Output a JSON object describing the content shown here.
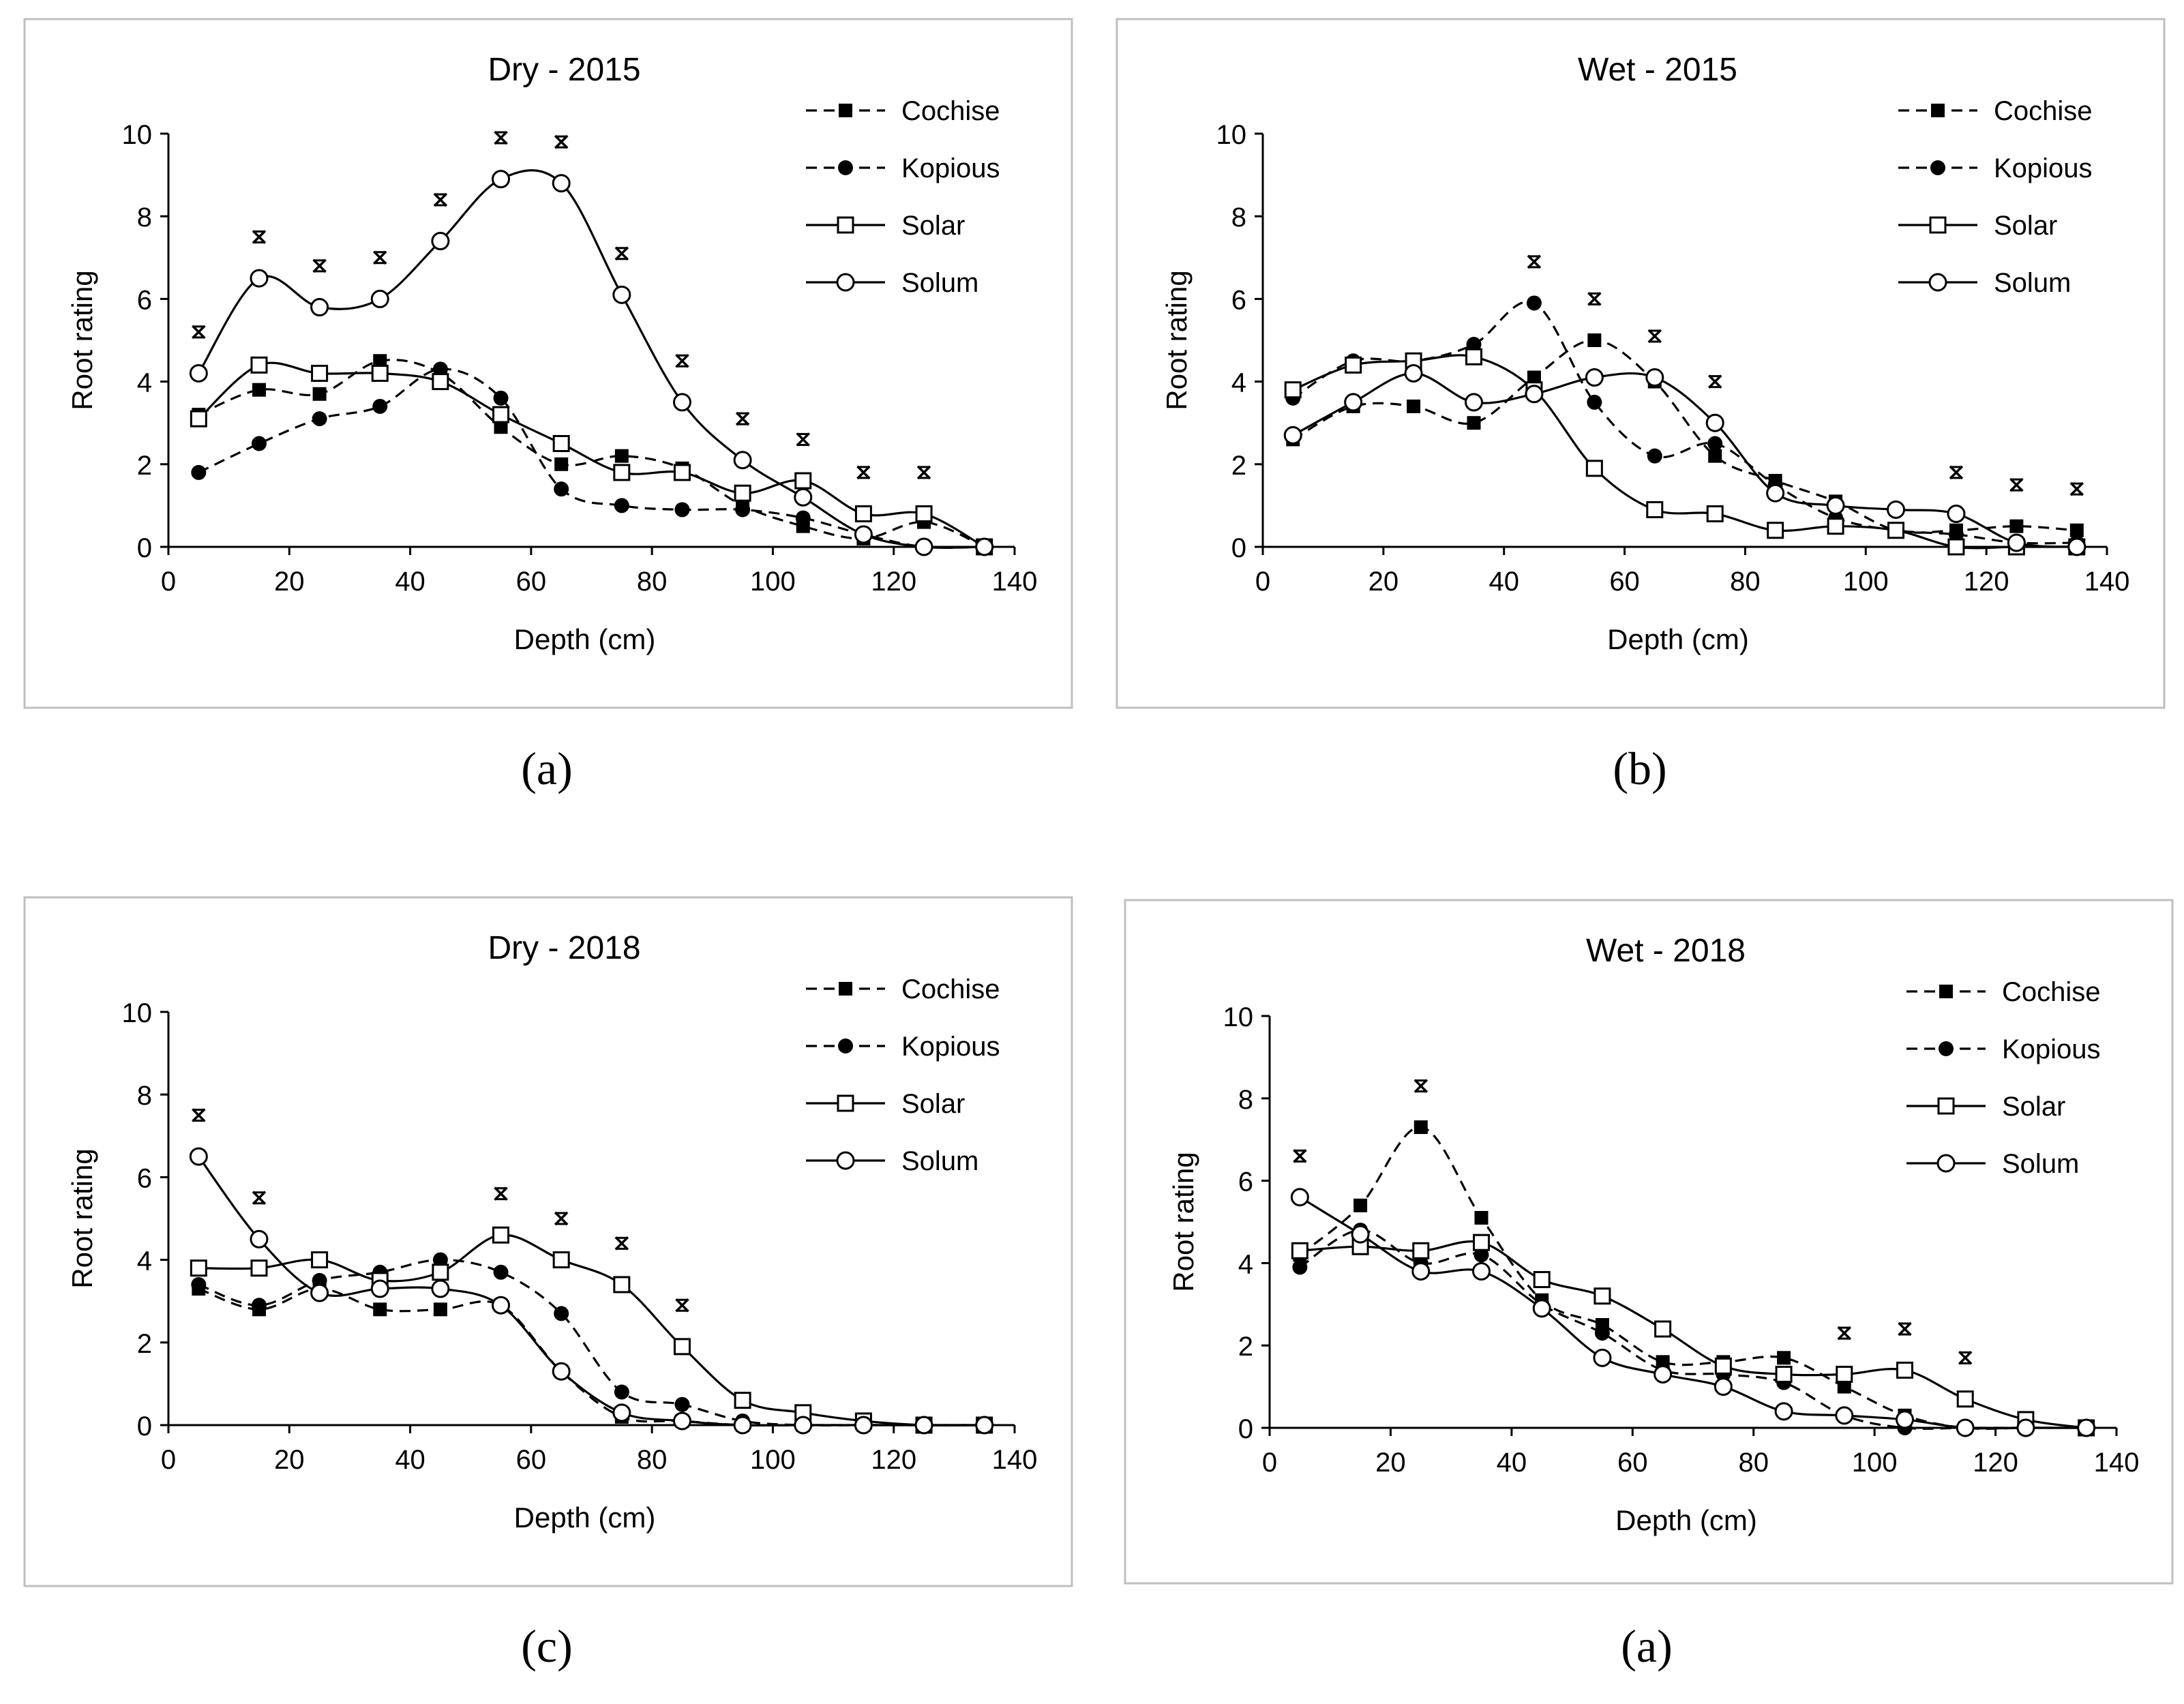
{
  "chart_data": [
    {
      "type": "line",
      "title": "Dry - 2015",
      "caption": "(a)",
      "xlabel": "Depth (cm)",
      "ylabel": "Root rating",
      "xlim": [
        0,
        140
      ],
      "ylim": [
        0,
        10
      ],
      "xticks": [
        0,
        20,
        40,
        60,
        80,
        100,
        120,
        140
      ],
      "yticks": [
        0,
        2,
        4,
        6,
        8,
        10
      ],
      "grid": false,
      "legend_position": "top-right",
      "x": [
        5,
        15,
        25,
        35,
        45,
        55,
        65,
        75,
        85,
        95,
        105,
        115,
        125,
        135
      ],
      "series": [
        {
          "name": "Cochise",
          "values": [
            3.2,
            3.8,
            3.7,
            4.5,
            4.2,
            2.9,
            2.0,
            2.2,
            1.9,
            1.0,
            0.5,
            0.2,
            0.6,
            0.0
          ]
        },
        {
          "name": "Kopious",
          "values": [
            1.8,
            2.5,
            3.1,
            3.4,
            4.3,
            3.6,
            1.4,
            1.0,
            0.9,
            0.9,
            0.7,
            0.3,
            0.0,
            0.0
          ]
        },
        {
          "name": "Solar",
          "values": [
            3.1,
            4.4,
            4.2,
            4.2,
            4.0,
            3.2,
            2.5,
            1.8,
            1.8,
            1.3,
            1.6,
            0.8,
            0.8,
            0.0
          ]
        },
        {
          "name": "Solum",
          "values": [
            4.2,
            6.5,
            5.8,
            6.0,
            7.4,
            8.9,
            8.8,
            6.1,
            3.5,
            2.1,
            1.2,
            0.3,
            0.0,
            0.0
          ]
        }
      ],
      "significance_marks": [
        {
          "x": 5,
          "y": 5.2,
          "label": "*"
        },
        {
          "x": 15,
          "y": 7.5,
          "label": "*"
        },
        {
          "x": 25,
          "y": 6.8,
          "label": "*"
        },
        {
          "x": 35,
          "y": 7.0,
          "label": "*"
        },
        {
          "x": 45,
          "y": 8.4,
          "label": "*"
        },
        {
          "x": 55,
          "y": 9.9,
          "label": "*"
        },
        {
          "x": 65,
          "y": 9.8,
          "label": "*"
        },
        {
          "x": 75,
          "y": 7.1,
          "label": "*"
        },
        {
          "x": 85,
          "y": 4.5,
          "label": "*"
        },
        {
          "x": 95,
          "y": 3.1,
          "label": "*"
        },
        {
          "x": 105,
          "y": 2.6,
          "label": "*"
        },
        {
          "x": 115,
          "y": 1.8,
          "label": "*"
        },
        {
          "x": 125,
          "y": 1.8,
          "label": "*"
        }
      ]
    },
    {
      "type": "line",
      "title": "Wet - 2015",
      "caption": "(b)",
      "xlabel": "Depth (cm)",
      "ylabel": "Root rating",
      "xlim": [
        0,
        140
      ],
      "ylim": [
        0,
        10
      ],
      "xticks": [
        0,
        20,
        40,
        60,
        80,
        100,
        120,
        140
      ],
      "yticks": [
        0,
        2,
        4,
        6,
        8,
        10
      ],
      "grid": false,
      "legend_position": "top-right",
      "x": [
        5,
        15,
        25,
        35,
        45,
        55,
        65,
        75,
        85,
        95,
        105,
        115,
        125,
        135
      ],
      "series": [
        {
          "name": "Cochise",
          "values": [
            2.6,
            3.4,
            3.4,
            3.0,
            4.1,
            5.0,
            4.0,
            2.2,
            1.6,
            1.1,
            0.4,
            0.4,
            0.5,
            0.4
          ]
        },
        {
          "name": "Kopious",
          "values": [
            3.6,
            4.5,
            4.5,
            4.9,
            5.9,
            3.5,
            2.2,
            2.5,
            1.5,
            0.7,
            0.4,
            0.3,
            0.1,
            0.1
          ]
        },
        {
          "name": "Solar",
          "values": [
            3.8,
            4.4,
            4.5,
            4.6,
            3.8,
            1.9,
            0.9,
            0.8,
            0.4,
            0.5,
            0.4,
            0.0,
            0.0,
            0.0
          ]
        },
        {
          "name": "Solum",
          "values": [
            2.7,
            3.5,
            4.2,
            3.5,
            3.7,
            4.1,
            4.1,
            3.0,
            1.3,
            1.0,
            0.9,
            0.8,
            0.1,
            0.0
          ]
        }
      ],
      "significance_marks": [
        {
          "x": 45,
          "y": 6.9,
          "label": "*"
        },
        {
          "x": 55,
          "y": 6.0,
          "label": "*"
        },
        {
          "x": 65,
          "y": 5.1,
          "label": "*"
        },
        {
          "x": 75,
          "y": 4.0,
          "label": "*"
        },
        {
          "x": 115,
          "y": 1.8,
          "label": "*"
        },
        {
          "x": 125,
          "y": 1.5,
          "label": "*"
        },
        {
          "x": 135,
          "y": 1.4,
          "label": "*"
        }
      ]
    },
    {
      "type": "line",
      "title": "Dry - 2018",
      "caption": "(c)",
      "xlabel": "Depth (cm)",
      "ylabel": "Root rating",
      "xlim": [
        0,
        140
      ],
      "ylim": [
        0,
        10
      ],
      "xticks": [
        0,
        20,
        40,
        60,
        80,
        100,
        120,
        140
      ],
      "yticks": [
        0,
        2,
        4,
        6,
        8,
        10
      ],
      "grid": false,
      "legend_position": "top-right",
      "x": [
        5,
        15,
        25,
        35,
        45,
        55,
        65,
        75,
        85,
        95,
        105,
        115,
        125,
        135
      ],
      "series": [
        {
          "name": "Cochise",
          "values": [
            3.3,
            2.8,
            3.3,
            2.8,
            2.8,
            2.9,
            1.3,
            0.2,
            0.1,
            0.0,
            0.0,
            0.0,
            0.0,
            0.0
          ]
        },
        {
          "name": "Kopious",
          "values": [
            3.4,
            2.9,
            3.5,
            3.7,
            4.0,
            3.7,
            2.7,
            0.8,
            0.5,
            0.1,
            0.0,
            0.0,
            0.0,
            0.0
          ]
        },
        {
          "name": "Solar",
          "values": [
            3.8,
            3.8,
            4.0,
            3.5,
            3.7,
            4.6,
            4.0,
            3.4,
            1.9,
            0.6,
            0.3,
            0.1,
            0.0,
            0.0
          ]
        },
        {
          "name": "Solum",
          "values": [
            6.5,
            4.5,
            3.2,
            3.3,
            3.3,
            2.9,
            1.3,
            0.3,
            0.1,
            0.0,
            0.0,
            0.0,
            0.0,
            0.0
          ]
        }
      ],
      "significance_marks": [
        {
          "x": 5,
          "y": 7.5,
          "label": "*"
        },
        {
          "x": 15,
          "y": 5.5,
          "label": "*"
        },
        {
          "x": 55,
          "y": 5.6,
          "label": "*"
        },
        {
          "x": 65,
          "y": 5.0,
          "label": "*"
        },
        {
          "x": 75,
          "y": 4.4,
          "label": "*"
        },
        {
          "x": 85,
          "y": 2.9,
          "label": "*"
        }
      ]
    },
    {
      "type": "line",
      "title": "Wet - 2018",
      "caption": "(a)",
      "xlabel": "Depth (cm)",
      "ylabel": "Root rating",
      "xlim": [
        0,
        140
      ],
      "ylim": [
        0,
        10
      ],
      "xticks": [
        0,
        20,
        40,
        60,
        80,
        100,
        120,
        140
      ],
      "yticks": [
        0,
        2,
        4,
        6,
        8,
        10
      ],
      "grid": false,
      "legend_position": "top-right",
      "x": [
        5,
        15,
        25,
        35,
        45,
        55,
        65,
        75,
        85,
        95,
        105,
        115,
        125,
        135
      ],
      "series": [
        {
          "name": "Cochise",
          "values": [
            4.2,
            5.4,
            7.3,
            5.1,
            3.1,
            2.5,
            1.6,
            1.6,
            1.7,
            1.0,
            0.3,
            0.0,
            0.0,
            0.0
          ]
        },
        {
          "name": "Kopious",
          "values": [
            3.9,
            4.8,
            4.0,
            4.2,
            3.0,
            2.3,
            1.4,
            1.3,
            1.1,
            0.3,
            0.0,
            0.0,
            0.0,
            0.0
          ]
        },
        {
          "name": "Solar",
          "values": [
            4.3,
            4.4,
            4.3,
            4.5,
            3.6,
            3.2,
            2.4,
            1.5,
            1.3,
            1.3,
            1.4,
            0.7,
            0.2,
            0.0
          ]
        },
        {
          "name": "Solum",
          "values": [
            5.6,
            4.7,
            3.8,
            3.8,
            2.9,
            1.7,
            1.3,
            1.0,
            0.4,
            0.3,
            0.2,
            0.0,
            0.0,
            0.0
          ]
        }
      ],
      "significance_marks": [
        {
          "x": 5,
          "y": 6.6,
          "label": "*"
        },
        {
          "x": 25,
          "y": 8.3,
          "label": "*"
        },
        {
          "x": 95,
          "y": 2.3,
          "label": "*"
        },
        {
          "x": 105,
          "y": 2.4,
          "label": "*"
        },
        {
          "x": 115,
          "y": 1.7,
          "label": "*"
        }
      ]
    }
  ],
  "styles": {
    "Cochise": {
      "dash": true,
      "marker": "square-filled"
    },
    "Kopious": {
      "dash": true,
      "marker": "circle-filled"
    },
    "Solar": {
      "dash": false,
      "marker": "square-open"
    },
    "Solum": {
      "dash": false,
      "marker": "circle-open"
    }
  },
  "colors": {
    "line": "#000000",
    "frame": "#bfbfbf",
    "background": "#ffffff"
  }
}
